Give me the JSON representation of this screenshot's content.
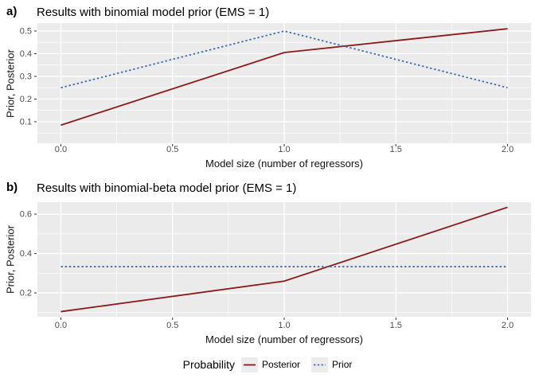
{
  "legend": {
    "title": "Probability",
    "entries": [
      {
        "label": "Posterior",
        "color": "#8B1A1A",
        "linetype": "solid"
      },
      {
        "label": "Prior",
        "color": "#3B6CB4",
        "linetype": "dotted"
      }
    ]
  },
  "chart_data": [
    {
      "type": "line",
      "tag": "a)",
      "title": "Results with binomial model prior (EMS = 1)",
      "xlabel": "Model size (number of regressors)",
      "ylabel": "Prior, Posterior",
      "x": [
        0,
        1,
        2
      ],
      "series": [
        {
          "name": "Posterior",
          "color": "#8B1A1A",
          "linetype": "solid",
          "values": [
            0.085,
            0.405,
            0.51
          ]
        },
        {
          "name": "Prior",
          "color": "#3B6CB4",
          "linetype": "dotted",
          "values": [
            0.25,
            0.5,
            0.25
          ]
        }
      ],
      "xlim": [
        -0.105,
        2.105
      ],
      "ylim": [
        0.005,
        0.535
      ],
      "x_ticks": [
        0.0,
        0.5,
        1.0,
        1.5,
        2.0
      ],
      "x_tick_labels": [
        "0.0",
        "0.5",
        "1.0",
        "1.5",
        "2.0"
      ],
      "y_ticks": [
        0.1,
        0.2,
        0.3,
        0.4,
        0.5
      ],
      "y_tick_labels": [
        "0.1",
        "0.2",
        "0.3",
        "0.4",
        "0.5"
      ],
      "grid": true,
      "legend_position": "bottom",
      "panel_bg": "#EBEBEB",
      "grid_color": "#FFFFFF",
      "tick_label_color": "#4D4D4D"
    },
    {
      "type": "line",
      "tag": "b)",
      "title": "Results with binomial-beta model prior (EMS = 1)",
      "xlabel": "Model size (number of regressors)",
      "ylabel": "Prior, Posterior",
      "x": [
        0,
        1,
        2
      ],
      "series": [
        {
          "name": "Posterior",
          "color": "#8B1A1A",
          "linetype": "solid",
          "values": [
            0.105,
            0.26,
            0.635
          ]
        },
        {
          "name": "Prior",
          "color": "#3B6CB4",
          "linetype": "dotted",
          "values": [
            0.3333,
            0.3333,
            0.3333
          ]
        }
      ],
      "xlim": [
        -0.105,
        2.105
      ],
      "ylim": [
        0.079,
        0.661
      ],
      "x_ticks": [
        0.0,
        0.5,
        1.0,
        1.5,
        2.0
      ],
      "x_tick_labels": [
        "0.0",
        "0.5",
        "1.0",
        "1.5",
        "2.0"
      ],
      "y_ticks": [
        0.2,
        0.4,
        0.6
      ],
      "y_tick_labels": [
        "0.2",
        "0.4",
        "0.6"
      ],
      "grid": true,
      "legend_position": "bottom",
      "panel_bg": "#EBEBEB",
      "grid_color": "#FFFFFF",
      "tick_label_color": "#4D4D4D"
    }
  ]
}
